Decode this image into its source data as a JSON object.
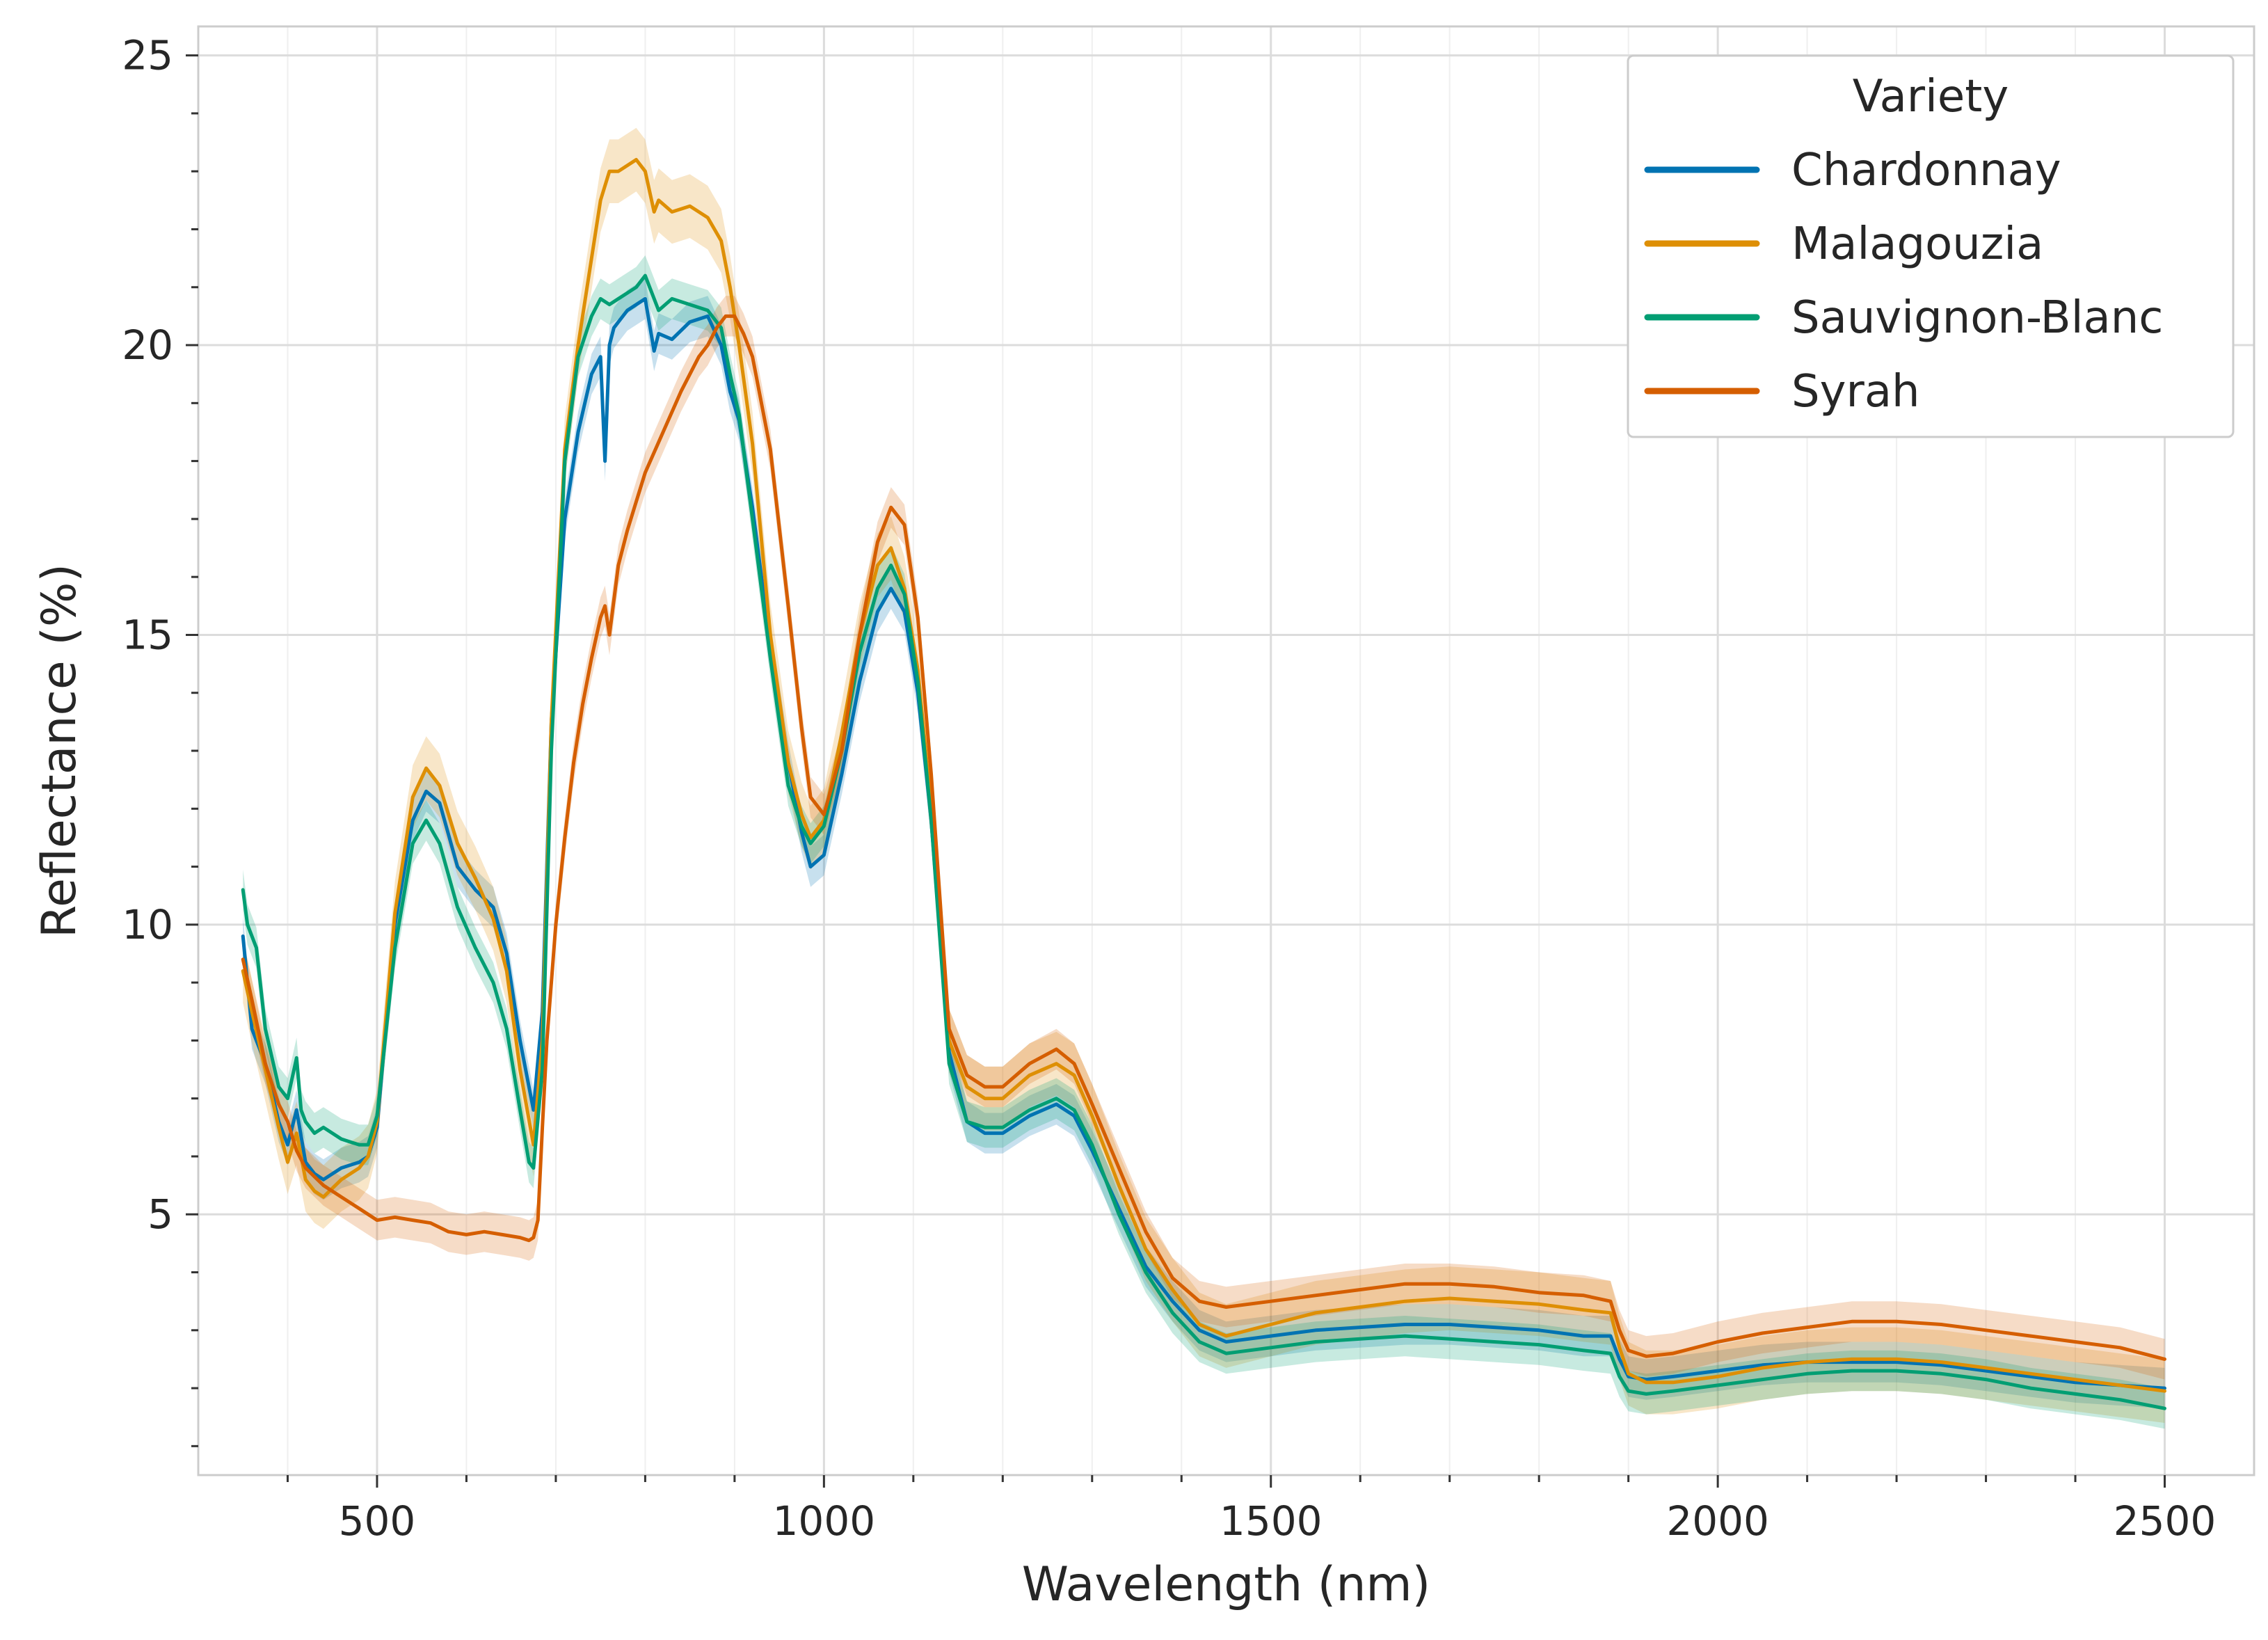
{
  "chart_data": {
    "type": "line",
    "title": "",
    "xlabel": "Wavelength (nm)",
    "ylabel": "Reflectance (%)",
    "xlim": [
      300,
      2600
    ],
    "ylim": [
      0.5,
      25.5
    ],
    "xticks": [
      500,
      1000,
      1500,
      2000,
      2500
    ],
    "xtick_labels": [
      "500",
      "1000",
      "1500",
      "2000",
      "2500"
    ],
    "yticks": [
      5,
      10,
      15,
      20,
      25
    ],
    "ytick_labels": [
      "5",
      "10",
      "15",
      "20",
      "25"
    ],
    "grid": true,
    "legend": {
      "title": "Variety",
      "location": "top-right"
    },
    "series": [
      {
        "name": "Chardonnay",
        "color": "#0173b2",
        "band": 0.35,
        "x": [
          350,
          360,
          375,
          390,
          400,
          410,
          420,
          430,
          440,
          460,
          480,
          490,
          500,
          520,
          540,
          555,
          570,
          590,
          610,
          630,
          645,
          660,
          675,
          685,
          695,
          710,
          725,
          740,
          750,
          755,
          760,
          765,
          780,
          800,
          810,
          815,
          830,
          850,
          870,
          885,
          895,
          905,
          920,
          940,
          960,
          975,
          985,
          1000,
          1020,
          1040,
          1060,
          1075,
          1090,
          1105,
          1120,
          1140,
          1160,
          1180,
          1200,
          1230,
          1260,
          1280,
          1300,
          1330,
          1360,
          1390,
          1420,
          1450,
          1500,
          1550,
          1600,
          1650,
          1700,
          1750,
          1800,
          1850,
          1880,
          1890,
          1900,
          1920,
          1950,
          2000,
          2050,
          2100,
          2150,
          2200,
          2250,
          2300,
          2350,
          2400,
          2450,
          2500
        ],
        "y": [
          9.8,
          8.2,
          7.6,
          6.6,
          6.2,
          6.8,
          5.9,
          5.7,
          5.6,
          5.8,
          5.9,
          6.0,
          6.5,
          10.0,
          11.8,
          12.3,
          12.1,
          11.0,
          10.6,
          10.3,
          9.5,
          8.0,
          6.8,
          8.5,
          13.5,
          17.0,
          18.5,
          19.5,
          19.8,
          18.0,
          20.0,
          20.3,
          20.6,
          20.8,
          19.9,
          20.2,
          20.1,
          20.4,
          20.5,
          20.0,
          19.2,
          18.7,
          17.2,
          14.8,
          12.8,
          11.6,
          11.0,
          11.2,
          12.6,
          14.2,
          15.4,
          15.8,
          15.4,
          14.0,
          11.8,
          7.8,
          6.6,
          6.4,
          6.4,
          6.7,
          6.9,
          6.7,
          6.1,
          5.1,
          4.1,
          3.5,
          3.0,
          2.8,
          2.9,
          3.0,
          3.05,
          3.1,
          3.1,
          3.05,
          3.0,
          2.9,
          2.9,
          2.5,
          2.2,
          2.15,
          2.2,
          2.3,
          2.4,
          2.45,
          2.45,
          2.45,
          2.4,
          2.3,
          2.2,
          2.1,
          2.05,
          2.0
        ]
      },
      {
        "name": "Malagouzia",
        "color": "#de8f05",
        "band": 0.55,
        "x": [
          350,
          360,
          375,
          390,
          400,
          410,
          420,
          430,
          440,
          460,
          480,
          490,
          500,
          520,
          540,
          555,
          570,
          590,
          610,
          630,
          645,
          660,
          675,
          685,
          695,
          710,
          725,
          740,
          750,
          760,
          770,
          790,
          800,
          810,
          815,
          830,
          850,
          870,
          885,
          895,
          905,
          920,
          940,
          960,
          975,
          985,
          1000,
          1020,
          1040,
          1060,
          1075,
          1090,
          1105,
          1120,
          1140,
          1160,
          1180,
          1200,
          1230,
          1260,
          1280,
          1300,
          1330,
          1360,
          1390,
          1420,
          1450,
          1500,
          1550,
          1600,
          1650,
          1700,
          1750,
          1800,
          1850,
          1880,
          1890,
          1900,
          1920,
          1950,
          2000,
          2050,
          2100,
          2150,
          2200,
          2250,
          2300,
          2350,
          2400,
          2450,
          2500
        ],
        "y": [
          9.2,
          8.5,
          7.5,
          6.5,
          5.9,
          6.4,
          5.6,
          5.4,
          5.3,
          5.6,
          5.8,
          6.0,
          6.6,
          10.2,
          12.2,
          12.7,
          12.4,
          11.4,
          10.8,
          10.1,
          9.2,
          7.5,
          6.2,
          8.0,
          13.5,
          18.2,
          20.0,
          21.5,
          22.5,
          23.0,
          23.0,
          23.2,
          23.0,
          22.3,
          22.5,
          22.3,
          22.4,
          22.2,
          21.8,
          21.0,
          20.0,
          18.3,
          15.0,
          12.8,
          11.9,
          11.5,
          11.8,
          13.3,
          15.0,
          16.2,
          16.5,
          15.8,
          14.4,
          12.0,
          8.0,
          7.2,
          7.0,
          7.0,
          7.4,
          7.6,
          7.4,
          6.7,
          5.5,
          4.4,
          3.7,
          3.1,
          2.9,
          3.1,
          3.3,
          3.4,
          3.5,
          3.55,
          3.5,
          3.45,
          3.35,
          3.3,
          2.7,
          2.25,
          2.1,
          2.1,
          2.2,
          2.35,
          2.45,
          2.5,
          2.5,
          2.45,
          2.35,
          2.25,
          2.15,
          2.05,
          1.95
        ]
      },
      {
        "name": "Sauvignon-Blanc",
        "color": "#029e73",
        "band": 0.35,
        "x": [
          350,
          355,
          365,
          375,
          390,
          400,
          410,
          415,
          420,
          430,
          440,
          460,
          480,
          490,
          500,
          520,
          540,
          555,
          570,
          590,
          610,
          630,
          645,
          660,
          670,
          675,
          685,
          695,
          710,
          725,
          740,
          750,
          760,
          770,
          790,
          800,
          815,
          830,
          850,
          870,
          885,
          895,
          905,
          920,
          940,
          960,
          975,
          985,
          1000,
          1020,
          1040,
          1060,
          1075,
          1090,
          1105,
          1120,
          1140,
          1160,
          1180,
          1200,
          1230,
          1260,
          1280,
          1300,
          1330,
          1360,
          1390,
          1420,
          1450,
          1500,
          1550,
          1600,
          1650,
          1700,
          1750,
          1800,
          1850,
          1880,
          1890,
          1900,
          1920,
          1950,
          2000,
          2050,
          2100,
          2150,
          2200,
          2250,
          2300,
          2350,
          2400,
          2450,
          2500
        ],
        "y": [
          10.6,
          10.0,
          9.6,
          8.2,
          7.2,
          7.0,
          7.7,
          6.8,
          6.6,
          6.4,
          6.5,
          6.3,
          6.2,
          6.2,
          6.7,
          9.6,
          11.4,
          11.8,
          11.4,
          10.3,
          9.6,
          9.0,
          8.2,
          6.8,
          5.9,
          5.8,
          7.5,
          13.0,
          18.0,
          19.8,
          20.5,
          20.8,
          20.7,
          20.8,
          21.0,
          21.2,
          20.6,
          20.8,
          20.7,
          20.6,
          20.3,
          19.5,
          18.8,
          17.0,
          14.6,
          12.4,
          11.7,
          11.4,
          11.7,
          13.0,
          14.7,
          15.8,
          16.2,
          15.7,
          14.2,
          11.8,
          7.6,
          6.6,
          6.5,
          6.5,
          6.8,
          7.0,
          6.8,
          6.2,
          5.0,
          4.0,
          3.3,
          2.8,
          2.6,
          2.7,
          2.8,
          2.85,
          2.9,
          2.85,
          2.8,
          2.75,
          2.65,
          2.6,
          2.2,
          1.95,
          1.9,
          1.95,
          2.05,
          2.15,
          2.25,
          2.3,
          2.3,
          2.25,
          2.15,
          2.0,
          1.9,
          1.8,
          1.65
        ]
      },
      {
        "name": "Syrah",
        "color": "#d55e00",
        "band": 0.35,
        "x": [
          350,
          360,
          375,
          390,
          400,
          410,
          420,
          440,
          460,
          480,
          500,
          520,
          540,
          560,
          580,
          600,
          620,
          640,
          660,
          670,
          675,
          680,
          685,
          690,
          700,
          710,
          720,
          730,
          740,
          750,
          755,
          760,
          770,
          780,
          790,
          800,
          820,
          840,
          860,
          870,
          880,
          890,
          900,
          910,
          920,
          940,
          960,
          975,
          985,
          1000,
          1020,
          1040,
          1060,
          1075,
          1090,
          1105,
          1120,
          1140,
          1160,
          1180,
          1200,
          1230,
          1260,
          1280,
          1300,
          1330,
          1360,
          1390,
          1420,
          1450,
          1500,
          1550,
          1600,
          1650,
          1700,
          1750,
          1800,
          1850,
          1880,
          1890,
          1900,
          1920,
          1950,
          2000,
          2050,
          2100,
          2150,
          2200,
          2250,
          2300,
          2350,
          2400,
          2450,
          2500
        ],
        "y": [
          9.4,
          8.7,
          7.6,
          6.9,
          6.6,
          6.1,
          5.8,
          5.5,
          5.3,
          5.1,
          4.9,
          4.95,
          4.9,
          4.85,
          4.7,
          4.65,
          4.7,
          4.65,
          4.6,
          4.55,
          4.6,
          4.9,
          6.5,
          8.0,
          10.0,
          11.5,
          12.8,
          13.8,
          14.6,
          15.3,
          15.5,
          15.0,
          16.2,
          16.8,
          17.3,
          17.8,
          18.5,
          19.2,
          19.8,
          20.0,
          20.3,
          20.5,
          20.5,
          20.2,
          19.8,
          18.2,
          15.5,
          13.4,
          12.2,
          11.9,
          13.0,
          15.0,
          16.6,
          17.2,
          16.9,
          15.3,
          12.6,
          8.2,
          7.4,
          7.2,
          7.2,
          7.6,
          7.85,
          7.6,
          6.9,
          5.8,
          4.7,
          3.9,
          3.5,
          3.4,
          3.5,
          3.6,
          3.7,
          3.8,
          3.8,
          3.75,
          3.65,
          3.6,
          3.5,
          3.0,
          2.65,
          2.55,
          2.6,
          2.8,
          2.95,
          3.05,
          3.15,
          3.15,
          3.1,
          3.0,
          2.9,
          2.8,
          2.7,
          2.5
        ]
      }
    ]
  }
}
